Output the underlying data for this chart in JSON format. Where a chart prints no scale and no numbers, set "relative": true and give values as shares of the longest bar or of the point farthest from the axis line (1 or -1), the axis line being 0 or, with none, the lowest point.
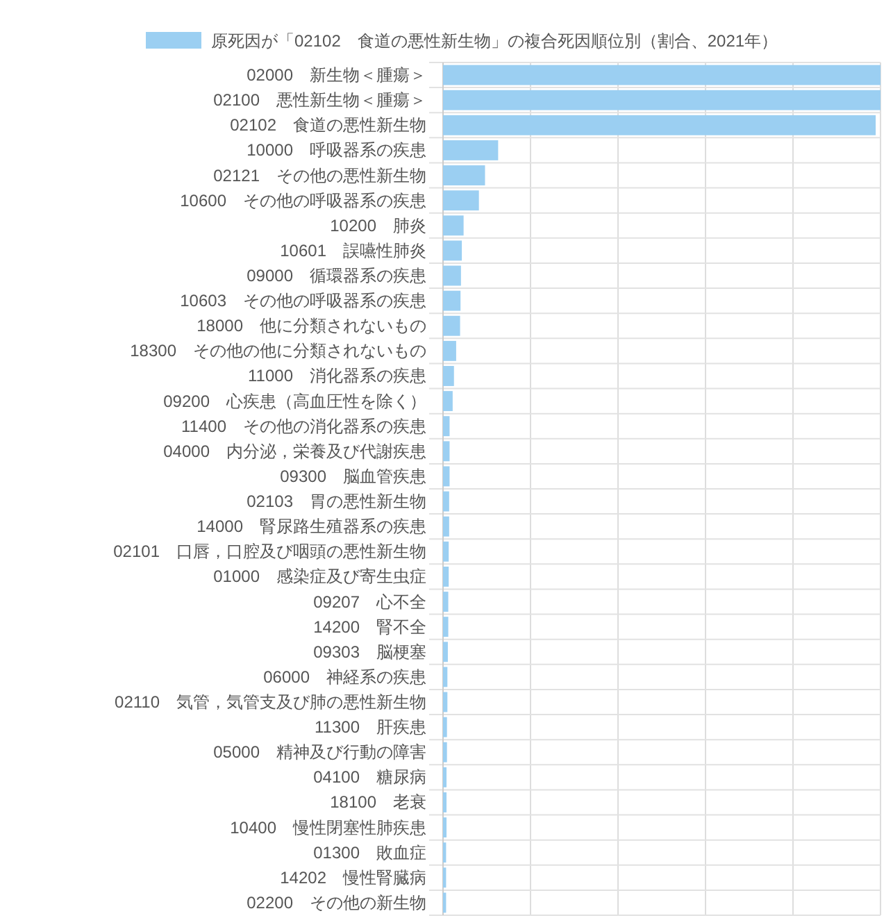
{
  "chart_data": {
    "type": "bar",
    "orientation": "horizontal",
    "relative": true,
    "grid": true,
    "legend": "top",
    "categories": [
      "02000　新生物＜腫瘍＞",
      "02100　悪性新生物＜腫瘍＞",
      "02102　食道の悪性新生物",
      "10000　呼吸器系の疾患",
      "02121　その他の悪性新生物",
      "10600　その他の呼吸器系の疾患",
      "10200　肺炎",
      "10601　誤嚥性肺炎",
      "09000　循環器系の疾患",
      "10603　その他の呼吸器系の疾患",
      "18000　他に分類されないもの",
      "18300　その他の他に分類されないもの",
      "11000　消化器系の疾患",
      "09200　心疾患（高血圧性を除く）",
      "11400　その他の消化器系の疾患",
      "04000　内分泌，栄養及び代謝疾患",
      "09300　脳血管疾患",
      "02103　胃の悪性新生物",
      "14000　腎尿路生殖器系の疾患",
      "02101　口唇，口腔及び咽頭の悪性新生物",
      "01000　感染症及び寄生虫症",
      "09207　心不全",
      "14200　腎不全",
      "09303　脳梗塞",
      "06000　神経系の疾患",
      "02110　気管，気管支及び肺の悪性新生物",
      "11300　肝疾患",
      "05000　精神及び行動の障害",
      "04100　糖尿病",
      "18100　老衰",
      "10400　慢性閉塞性肺疾患",
      "01300　敗血症",
      "14202　慢性腎臓病",
      "02200　その他の新生物"
    ],
    "series": [
      {
        "name": "原死因が「02102　食道の悪性新生物」の複合死因順位別（割合、2021年）",
        "color": "#9bcff2",
        "values": [
          1,
          1,
          0.989,
          0.126,
          0.096,
          0.082,
          0.047,
          0.043,
          0.041,
          0.04,
          0.039,
          0.03,
          0.025,
          0.022,
          0.015,
          0.015,
          0.015,
          0.014,
          0.014,
          0.013,
          0.013,
          0.012,
          0.012,
          0.011,
          0.01,
          0.01,
          0.009,
          0.009,
          0.008,
          0.008,
          0.008,
          0.007,
          0.007,
          0.007
        ]
      }
    ]
  }
}
